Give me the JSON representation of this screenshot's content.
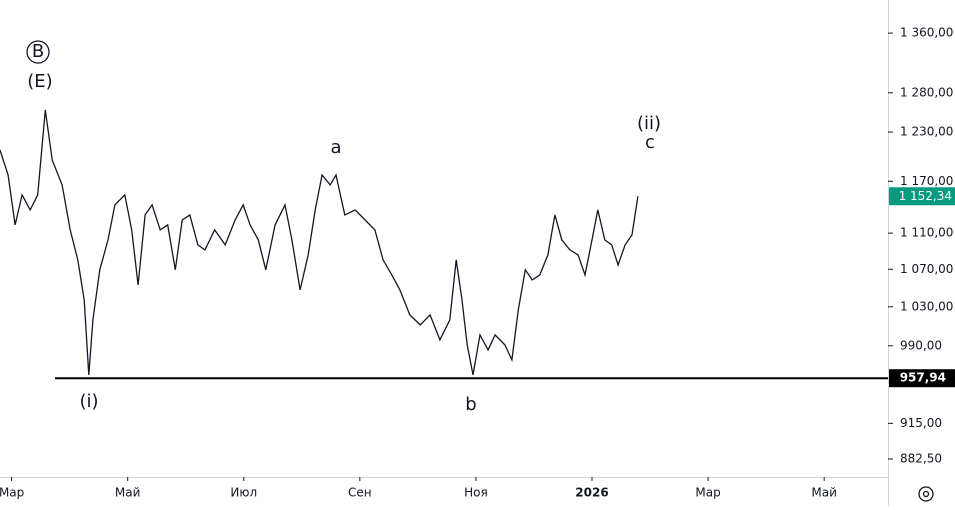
{
  "chart_data": {
    "type": "line",
    "log_scale": true,
    "grid": false,
    "color": "#131722",
    "x": [
      2.8,
      2.94,
      3.06,
      3.18,
      3.32,
      3.45,
      3.58,
      3.7,
      3.87,
      4.01,
      4.14,
      4.25,
      4.33,
      4.4,
      4.52,
      4.66,
      4.78,
      4.95,
      5.07,
      5.18,
      5.3,
      5.42,
      5.56,
      5.69,
      5.82,
      5.94,
      6.07,
      6.21,
      6.33,
      6.5,
      6.68,
      6.85,
      6.99,
      7.11,
      7.25,
      7.38,
      7.54,
      7.71,
      7.83,
      7.97,
      8.11,
      8.23,
      8.35,
      8.49,
      8.59,
      8.74,
      8.92,
      9.09,
      9.26,
      9.4,
      9.55,
      9.69,
      9.86,
      10.04,
      10.21,
      10.38,
      10.55,
      10.66,
      10.76,
      10.85,
      10.95,
      11.07,
      11.21,
      11.33,
      11.5,
      11.62,
      11.73,
      11.85,
      11.97,
      12.1,
      12.24,
      12.36,
      12.48,
      12.62,
      12.76,
      12.88,
      13.0,
      13.1,
      13.22,
      13.34,
      13.45,
      13.57,
      13.69,
      13.79
    ],
    "values": [
      1207.8,
      1177.5,
      1119.3,
      1153.9,
      1136.5,
      1153.9,
      1257.8,
      1195.6,
      1165.7,
      1113.7,
      1080.2,
      1037.2,
      961.2,
      1016.4,
      1069.4,
      1102.4,
      1142.3,
      1153.9,
      1113.7,
      1053.2,
      1130.7,
      1142.3,
      1113.7,
      1119.3,
      1069.4,
      1124.9,
      1130.7,
      1096.8,
      1091.3,
      1113.7,
      1096.8,
      1124.9,
      1142.3,
      1119.3,
      1102.4,
      1069.4,
      1119.3,
      1142.3,
      1102.4,
      1047.8,
      1085.7,
      1136.5,
      1177.5,
      1165.7,
      1177.5,
      1130.7,
      1136.5,
      1124.9,
      1113.7,
      1080.2,
      1063.9,
      1047.8,
      1021.5,
      1011.2,
      1021.5,
      995.9,
      1016.4,
      1080.2,
      1037.2,
      990.9,
      961.2,
      1001.0,
      985.9,
      1001.0,
      990.9,
      976.0,
      1026.7,
      1069.4,
      1058.5,
      1063.9,
      1085.7,
      1130.7,
      1102.4,
      1091.3,
      1085.7,
      1063.9,
      1102.4,
      1136.5,
      1102.4,
      1096.8,
      1074.7,
      1096.8,
      1108.0,
      1152.34
    ],
    "last_value": {
      "value": 1152.34,
      "label": "1 152,34",
      "color": "#089981"
    },
    "level": {
      "value": 957.94,
      "label": "957,94"
    },
    "xlim": [
      2.8,
      18.1
    ],
    "xticks": [
      {
        "value": 3,
        "label": "Мар"
      },
      {
        "value": 5,
        "label": "Май"
      },
      {
        "value": 7,
        "label": "Июл"
      },
      {
        "value": 9,
        "label": "Сен"
      },
      {
        "value": 11,
        "label": "Ноя"
      },
      {
        "value": 13,
        "label": "2026"
      },
      {
        "value": 15,
        "label": "Мар"
      },
      {
        "value": 17,
        "label": "Май"
      }
    ],
    "ylim": [
      866.5,
      1406.5
    ],
    "yticks": [
      {
        "value": 882.5,
        "label": "882,50"
      },
      {
        "value": 915,
        "label": "915,00"
      },
      {
        "value": 990,
        "label": "990,00"
      },
      {
        "value": 1030,
        "label": "1 030,00"
      },
      {
        "value": 1070,
        "label": "1 070,00"
      },
      {
        "value": 1110,
        "label": "1 110,00"
      },
      {
        "value": 1170,
        "label": "1 170,00"
      },
      {
        "value": 1230,
        "label": "1 230,00"
      },
      {
        "value": 1280,
        "label": "1 280,00"
      },
      {
        "value": 1360,
        "label": "1 360,00"
      }
    ],
    "annotations": [
      "B",
      "(E)",
      "a",
      "(i)",
      "b",
      "(ii)",
      "c"
    ]
  }
}
